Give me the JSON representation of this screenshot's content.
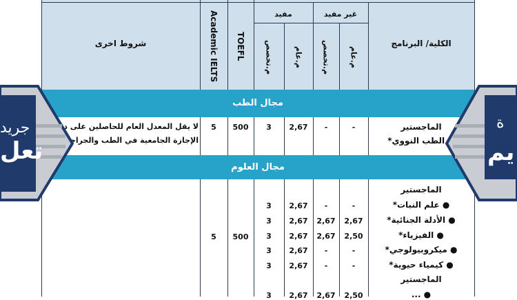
{
  "header": {
    "program": "الكلية/ البرنامج",
    "not_useful": "غير مفيد",
    "useful": "مفيد",
    "general": "م.عام",
    "specialized": "م.تخصص",
    "toefl": "TOEFL",
    "ielts": "Academic IELTS",
    "other_conditions": "شروط اخرى"
  },
  "sections": [
    {
      "title": "مجال الطب",
      "program_lines": [
        "الماجستير",
        "● الطب النووي*"
      ],
      "rows": [
        {
          "nu_general": "-",
          "nu_specialized": "-",
          "u_general": "2,67",
          "u_specialized": "3"
        }
      ],
      "toefl": "500",
      "ielts": "5",
      "other": [
        "لا يقل المعدل العام للحاصلين على درجة",
        "الإجازة الجامعية في الطب والجراحة"
      ]
    },
    {
      "title": "مجال العلوم",
      "program_lines": [
        "الماجستير",
        "● علم النبات*",
        "● الأدلة الجنائية*",
        "● الفيزياء*",
        "● ميكروبيولوجي*",
        "● كيمياء حيوية*",
        "الماجستير",
        "● ..."
      ],
      "rows": [
        {
          "nu_general": "-",
          "nu_specialized": "-",
          "u_general": "2,67",
          "u_specialized": "3"
        },
        {
          "nu_general": "2,67",
          "nu_specialized": "2,67",
          "u_general": "2,67",
          "u_specialized": "3"
        },
        {
          "nu_general": "2,50",
          "nu_specialized": "2,67",
          "u_general": "2,67",
          "u_specialized": "3"
        },
        {
          "nu_general": "-",
          "nu_specialized": "-",
          "u_general": "2,67",
          "u_specialized": "3"
        },
        {
          "nu_general": "-",
          "nu_specialized": "-",
          "u_general": "2,67",
          "u_specialized": "3"
        },
        {
          "nu_general": "2,50",
          "nu_specialized": "2,67",
          "u_general": "2,67",
          "u_specialized": "3"
        }
      ],
      "toefl": "500",
      "ielts": "5"
    }
  ],
  "watermark": {
    "logo_text_left": "جريدة تعليم",
    "logo_text_right": "جريدة تعليم"
  },
  "colors": {
    "header_bg": "#cfe0ec",
    "band": "#27a3c9",
    "logo_navy": "#1f3a6b"
  }
}
